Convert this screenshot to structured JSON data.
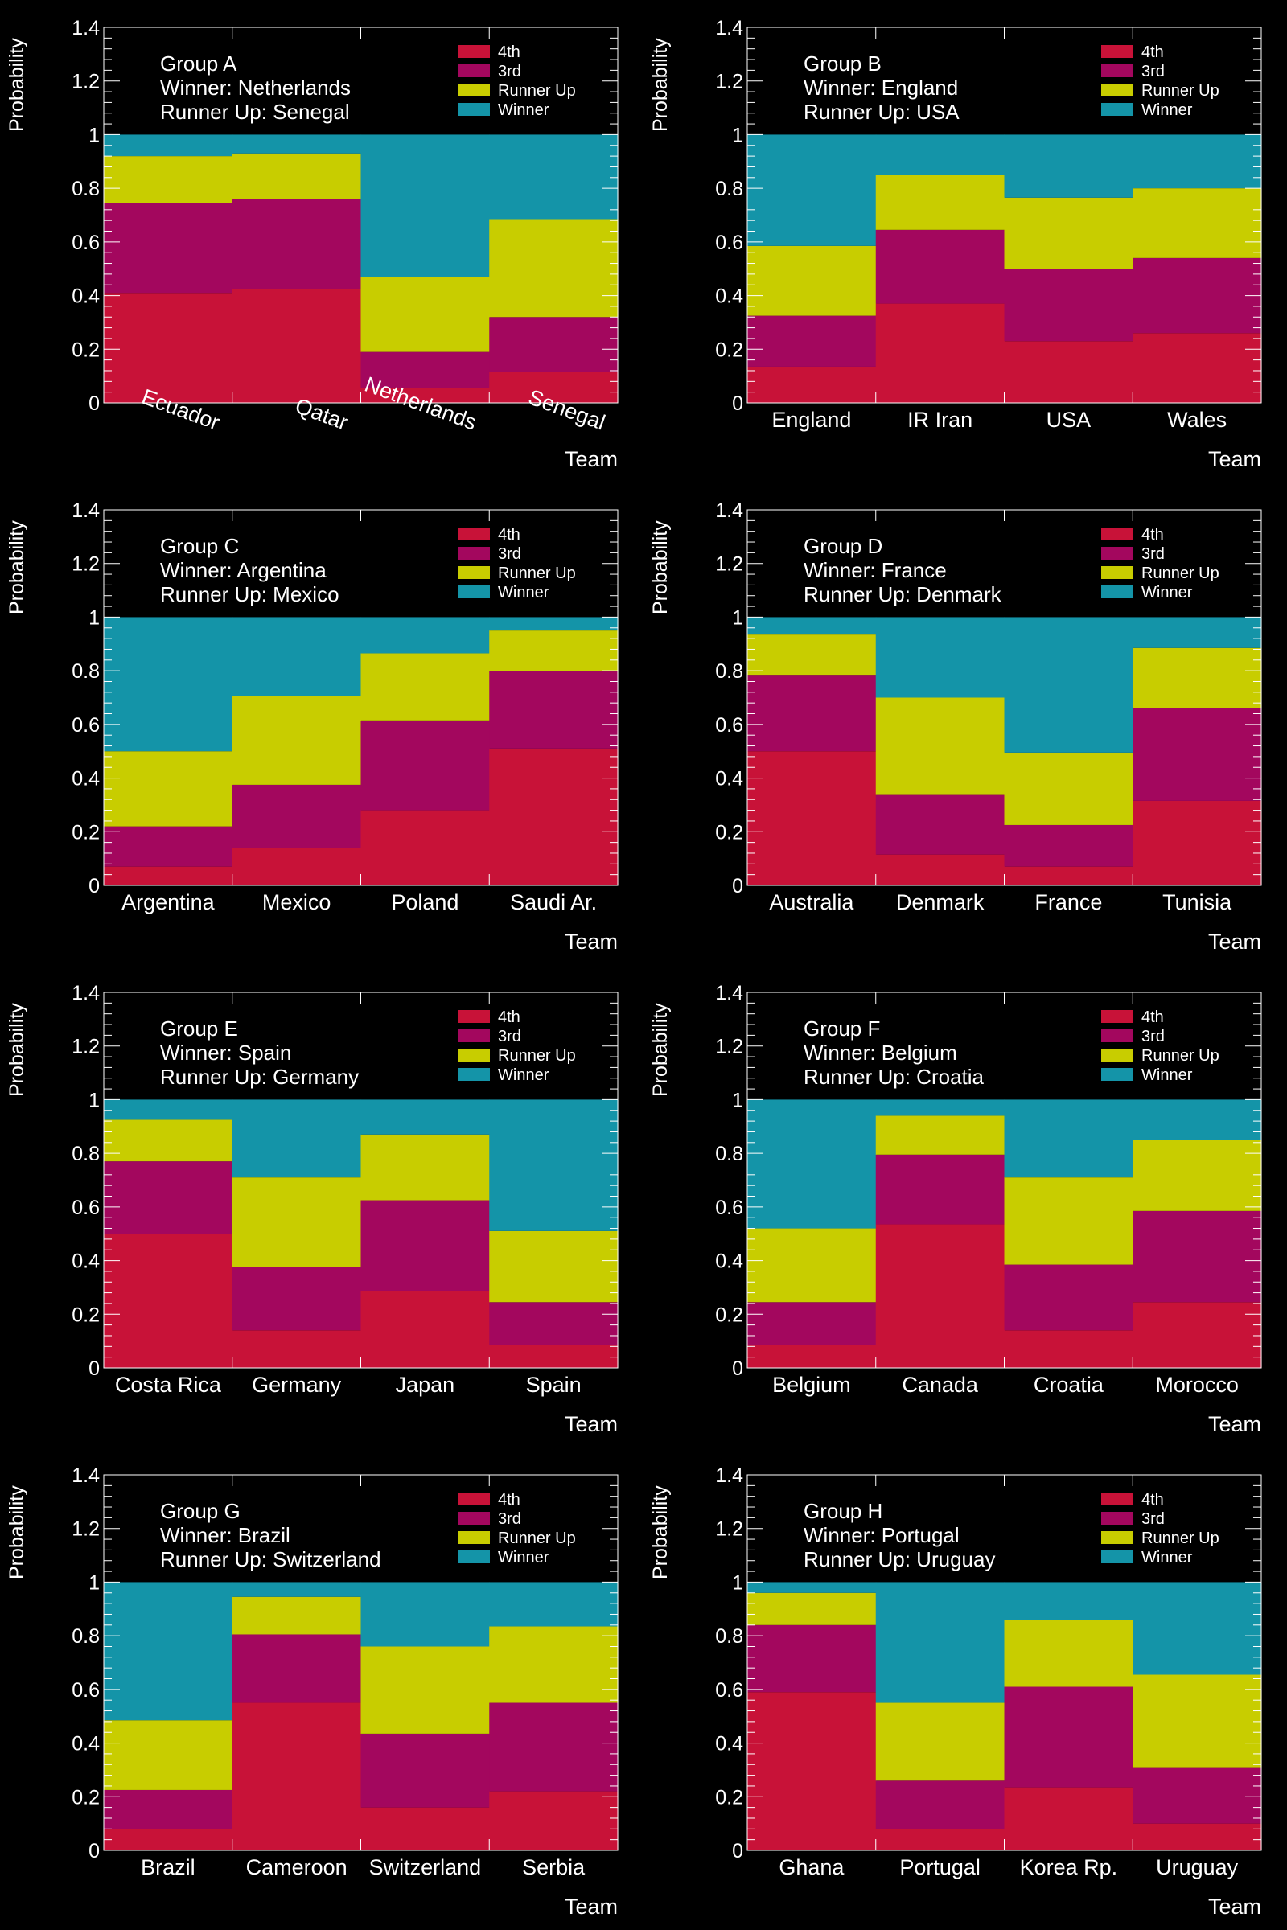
{
  "figure": {
    "ylabel": "Probability",
    "xlabel": "Team",
    "legend": [
      {
        "name": "4th",
        "color": "#c81238"
      },
      {
        "name": "3rd",
        "color": "#a3075e"
      },
      {
        "name": "Runner Up",
        "color": "#c8cd00"
      },
      {
        "name": "Winner",
        "color": "#1494a8"
      }
    ]
  },
  "chart_data": [
    {
      "type": "bar",
      "stacked": true,
      "title": [
        "Group A",
        "Winner: Netherlands",
        "Runner Up: Senegal"
      ],
      "xlabel": "Team",
      "ylabel": "Probability",
      "ylim": [
        0,
        1.4
      ],
      "yticks": [
        "0",
        "0.2",
        "0.4",
        "0.6",
        "0.8",
        "1",
        "1.2",
        "1.4"
      ],
      "rotated_labels": true,
      "legend_position": "top-right",
      "categories": [
        "Ecuador",
        "Qatar",
        "Netherlands",
        "Senegal"
      ],
      "series": [
        {
          "name": "4th",
          "values": [
            0.41,
            0.425,
            0.055,
            0.115
          ]
        },
        {
          "name": "3rd",
          "values": [
            0.335,
            0.335,
            0.135,
            0.205
          ]
        },
        {
          "name": "Runner Up",
          "values": [
            0.175,
            0.17,
            0.28,
            0.365
          ]
        },
        {
          "name": "Winner",
          "values": [
            0.08,
            0.07,
            0.53,
            0.315
          ]
        }
      ]
    },
    {
      "type": "bar",
      "stacked": true,
      "title": [
        "Group B",
        "Winner: England",
        "Runner Up: USA"
      ],
      "xlabel": "Team",
      "ylabel": "Probability",
      "ylim": [
        0,
        1.4
      ],
      "yticks": [
        "0",
        "0.2",
        "0.4",
        "0.6",
        "0.8",
        "1",
        "1.2",
        "1.4"
      ],
      "rotated_labels": false,
      "legend_position": "top-right",
      "categories": [
        "England",
        "IR Iran",
        "USA",
        "Wales"
      ],
      "series": [
        {
          "name": "4th",
          "values": [
            0.135,
            0.37,
            0.23,
            0.26
          ]
        },
        {
          "name": "3rd",
          "values": [
            0.19,
            0.275,
            0.27,
            0.28
          ]
        },
        {
          "name": "Runner Up",
          "values": [
            0.26,
            0.205,
            0.265,
            0.26
          ]
        },
        {
          "name": "Winner",
          "values": [
            0.415,
            0.15,
            0.235,
            0.2
          ]
        }
      ]
    },
    {
      "type": "bar",
      "stacked": true,
      "title": [
        "Group C",
        "Winner: Argentina",
        "Runner Up: Mexico"
      ],
      "xlabel": "Team",
      "ylabel": "Probability",
      "ylim": [
        0,
        1.4
      ],
      "yticks": [
        "0",
        "0.2",
        "0.4",
        "0.6",
        "0.8",
        "1",
        "1.2",
        "1.4"
      ],
      "rotated_labels": false,
      "legend_position": "top-right",
      "categories": [
        "Argentina",
        "Mexico",
        "Poland",
        "Saudi Ar."
      ],
      "series": [
        {
          "name": "4th",
          "values": [
            0.07,
            0.14,
            0.28,
            0.51
          ]
        },
        {
          "name": "3rd",
          "values": [
            0.15,
            0.235,
            0.335,
            0.29
          ]
        },
        {
          "name": "Runner Up",
          "values": [
            0.28,
            0.33,
            0.25,
            0.15
          ]
        },
        {
          "name": "Winner",
          "values": [
            0.5,
            0.295,
            0.135,
            0.05
          ]
        }
      ]
    },
    {
      "type": "bar",
      "stacked": true,
      "title": [
        "Group D",
        "Winner: France",
        "Runner Up: Denmark"
      ],
      "xlabel": "Team",
      "ylabel": "Probability",
      "ylim": [
        0,
        1.4
      ],
      "yticks": [
        "0",
        "0.2",
        "0.4",
        "0.6",
        "0.8",
        "1",
        "1.2",
        "1.4"
      ],
      "rotated_labels": false,
      "legend_position": "top-right",
      "categories": [
        "Australia",
        "Denmark",
        "France",
        "Tunisia"
      ],
      "series": [
        {
          "name": "4th",
          "values": [
            0.5,
            0.115,
            0.07,
            0.315
          ]
        },
        {
          "name": "3rd",
          "values": [
            0.285,
            0.225,
            0.155,
            0.345
          ]
        },
        {
          "name": "Runner Up",
          "values": [
            0.15,
            0.36,
            0.27,
            0.225
          ]
        },
        {
          "name": "Winner",
          "values": [
            0.065,
            0.3,
            0.505,
            0.115
          ]
        }
      ]
    },
    {
      "type": "bar",
      "stacked": true,
      "title": [
        "Group E",
        "Winner: Spain",
        "Runner Up: Germany"
      ],
      "xlabel": "Team",
      "ylabel": "Probability",
      "ylim": [
        0,
        1.4
      ],
      "yticks": [
        "0",
        "0.2",
        "0.4",
        "0.6",
        "0.8",
        "1",
        "1.2",
        "1.4"
      ],
      "rotated_labels": false,
      "legend_position": "top-right",
      "categories": [
        "Costa Rica",
        "Germany",
        "Japan",
        "Spain"
      ],
      "series": [
        {
          "name": "4th",
          "values": [
            0.5,
            0.14,
            0.285,
            0.085
          ]
        },
        {
          "name": "3rd",
          "values": [
            0.27,
            0.235,
            0.34,
            0.16
          ]
        },
        {
          "name": "Runner Up",
          "values": [
            0.155,
            0.335,
            0.245,
            0.265
          ]
        },
        {
          "name": "Winner",
          "values": [
            0.075,
            0.29,
            0.13,
            0.49
          ]
        }
      ]
    },
    {
      "type": "bar",
      "stacked": true,
      "title": [
        "Group F",
        "Winner: Belgium",
        "Runner Up: Croatia"
      ],
      "xlabel": "Team",
      "ylabel": "Probability",
      "ylim": [
        0,
        1.4
      ],
      "yticks": [
        "0",
        "0.2",
        "0.4",
        "0.6",
        "0.8",
        "1",
        "1.2",
        "1.4"
      ],
      "rotated_labels": false,
      "legend_position": "top-right",
      "categories": [
        "Belgium",
        "Canada",
        "Croatia",
        "Morocco"
      ],
      "series": [
        {
          "name": "4th",
          "values": [
            0.085,
            0.535,
            0.14,
            0.245
          ]
        },
        {
          "name": "3rd",
          "values": [
            0.16,
            0.26,
            0.245,
            0.34
          ]
        },
        {
          "name": "Runner Up",
          "values": [
            0.275,
            0.145,
            0.325,
            0.265
          ]
        },
        {
          "name": "Winner",
          "values": [
            0.48,
            0.06,
            0.29,
            0.15
          ]
        }
      ]
    },
    {
      "type": "bar",
      "stacked": true,
      "title": [
        "Group G",
        "Winner: Brazil",
        "Runner Up: Switzerland"
      ],
      "xlabel": "Team",
      "ylabel": "Probability",
      "ylim": [
        0,
        1.4
      ],
      "yticks": [
        "0",
        "0.2",
        "0.4",
        "0.6",
        "0.8",
        "1",
        "1.2",
        "1.4"
      ],
      "rotated_labels": false,
      "legend_position": "top-right",
      "categories": [
        "Brazil",
        "Cameroon",
        "Switzerland",
        "Serbia"
      ],
      "series": [
        {
          "name": "4th",
          "values": [
            0.08,
            0.55,
            0.16,
            0.22
          ]
        },
        {
          "name": "3rd",
          "values": [
            0.145,
            0.255,
            0.275,
            0.33
          ]
        },
        {
          "name": "Runner Up",
          "values": [
            0.26,
            0.14,
            0.325,
            0.285
          ]
        },
        {
          "name": "Winner",
          "values": [
            0.515,
            0.055,
            0.24,
            0.165
          ]
        }
      ]
    },
    {
      "type": "bar",
      "stacked": true,
      "title": [
        "Group H",
        "Winner: Portugal",
        "Runner Up: Uruguay"
      ],
      "xlabel": "Team",
      "ylabel": "Probability",
      "ylim": [
        0,
        1.4
      ],
      "yticks": [
        "0",
        "0.2",
        "0.4",
        "0.6",
        "0.8",
        "1",
        "1.2",
        "1.4"
      ],
      "rotated_labels": false,
      "legend_position": "top-right",
      "categories": [
        "Ghana",
        "Portugal",
        "Korea Rp.",
        "Uruguay"
      ],
      "series": [
        {
          "name": "4th",
          "values": [
            0.59,
            0.08,
            0.235,
            0.1
          ]
        },
        {
          "name": "3rd",
          "values": [
            0.25,
            0.18,
            0.375,
            0.21
          ]
        },
        {
          "name": "Runner Up",
          "values": [
            0.12,
            0.29,
            0.25,
            0.345
          ]
        },
        {
          "name": "Winner",
          "values": [
            0.04,
            0.45,
            0.14,
            0.345
          ]
        }
      ]
    }
  ]
}
